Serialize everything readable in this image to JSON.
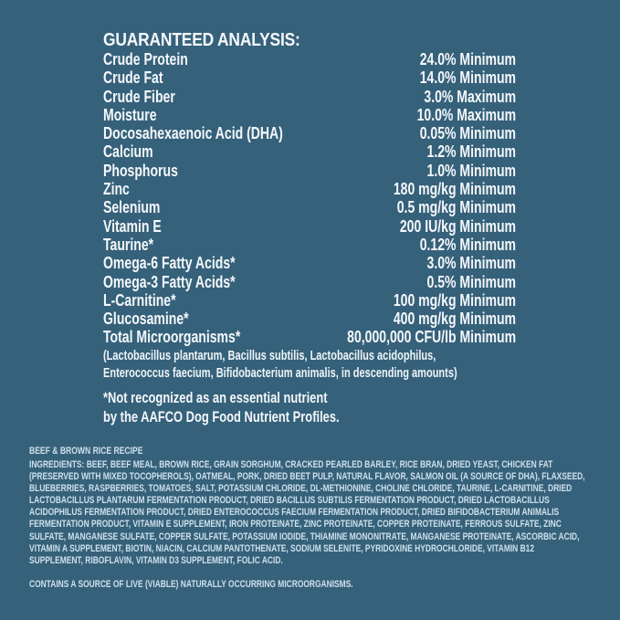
{
  "colors": {
    "background": "#36617a",
    "primary_text": "#f4f8fb",
    "secondary_text": "#cde0eb"
  },
  "guaranteed_analysis": {
    "title": "GUARANTEED ANALYSIS:",
    "rows": [
      {
        "label": "Crude Protein",
        "value": "24.0% Minimum"
      },
      {
        "label": "Crude Fat",
        "value": "14.0% Minimum"
      },
      {
        "label": "Crude Fiber",
        "value": "3.0% Maximum"
      },
      {
        "label": "Moisture",
        "value": "10.0% Maximum"
      },
      {
        "label": "Docosahexaenoic Acid (DHA)",
        "value": "0.05% Minimum"
      },
      {
        "label": "Calcium",
        "value": "1.2% Minimum"
      },
      {
        "label": "Phosphorus",
        "value": "1.0% Minimum"
      },
      {
        "label": "Zinc",
        "value": "180 mg/kg Minimum"
      },
      {
        "label": "Selenium",
        "value": "0.5 mg/kg Minimum"
      },
      {
        "label": "Vitamin E",
        "value": "200 IU/kg Minimum"
      },
      {
        "label": "Taurine*",
        "value": "0.12% Minimum"
      },
      {
        "label": "Omega-6 Fatty Acids*",
        "value": "3.0% Minimum"
      },
      {
        "label": "Omega-3 Fatty Acids*",
        "value": "0.5% Minimum"
      },
      {
        "label": "L-Carnitine*",
        "value": "100 mg/kg Minimum"
      },
      {
        "label": "Glucosamine*",
        "value": "400 mg/kg Minimum"
      },
      {
        "label": "Total Microorganisms*",
        "value": "80,000,000 CFU/lb Minimum"
      }
    ],
    "microorganisms_detail": {
      "line1": "(Lactobacillus plantarum, Bacillus subtilis, Lactobacillus acidophilus,",
      "line2": "Enterococcus faecium, Bifidobacterium animalis, in descending amounts)"
    },
    "aafco_note": {
      "line1": "*Not recognized as an essential nutrient",
      "line2": "by the AAFCO Dog Food Nutrient Profiles."
    }
  },
  "ingredients": {
    "recipe_title": "BEEF & BROWN RICE RECIPE",
    "label": "INGREDIENTS:",
    "list": " BEEF, BEEF MEAL, BROWN RICE, GRAIN SORGHUM, CRACKED PEARLED BARLEY, RICE BRAN, DRIED YEAST, CHICKEN FAT (PRESERVED WITH MIXED TOCOPHEROLS), OATMEAL, PORK, DRIED BEET PULP, NATURAL FLAVOR, SALMON OIL (A SOURCE OF DHA), FLAXSEED, BLUEBERRIES, RASPBERRIES, TOMATOES, SALT, POTASSIUM CHLORIDE, DL-METHIONINE, CHOLINE CHLORIDE, TAURINE, L-CARNITINE, DRIED LACTOBACILLUS PLANTARUM FERMENTATION PRODUCT, DRIED BACILLUS SUBTILIS FERMENTATION PRODUCT, DRIED LACTOBACILLUS ACIDOPHILUS FERMENTATION PRODUCT, DRIED ENTEROCOCCUS FAECIUM FERMENTATION PRODUCT, DRIED BIFIDOBACTERIUM ANIMALIS FERMENTATION PRODUCT, VITAMIN E SUPPLEMENT, IRON PROTEINATE, ZINC PROTEINATE, COPPER PROTEINATE, FERROUS SULFATE, ZINC SULFATE, MANGANESE SULFATE, COPPER SULFATE, POTASSIUM IODIDE, THIAMINE MONONITRATE, MANGANESE PROTEINATE, ASCORBIC ACID, VITAMIN A SUPPLEMENT, BIOTIN, NIACIN, CALCIUM PANTOTHENATE, SODIUM SELENITE, PYRIDOXINE HYDROCHLORIDE, VITAMIN B12 SUPPLEMENT, RIBOFLAVIN, VITAMIN D3 SUPPLEMENT, FOLIC ACID.",
    "contains_note": "CONTAINS A SOURCE OF LIVE (VIABLE) NATURALLY OCCURRING MICROORGANISMS."
  }
}
